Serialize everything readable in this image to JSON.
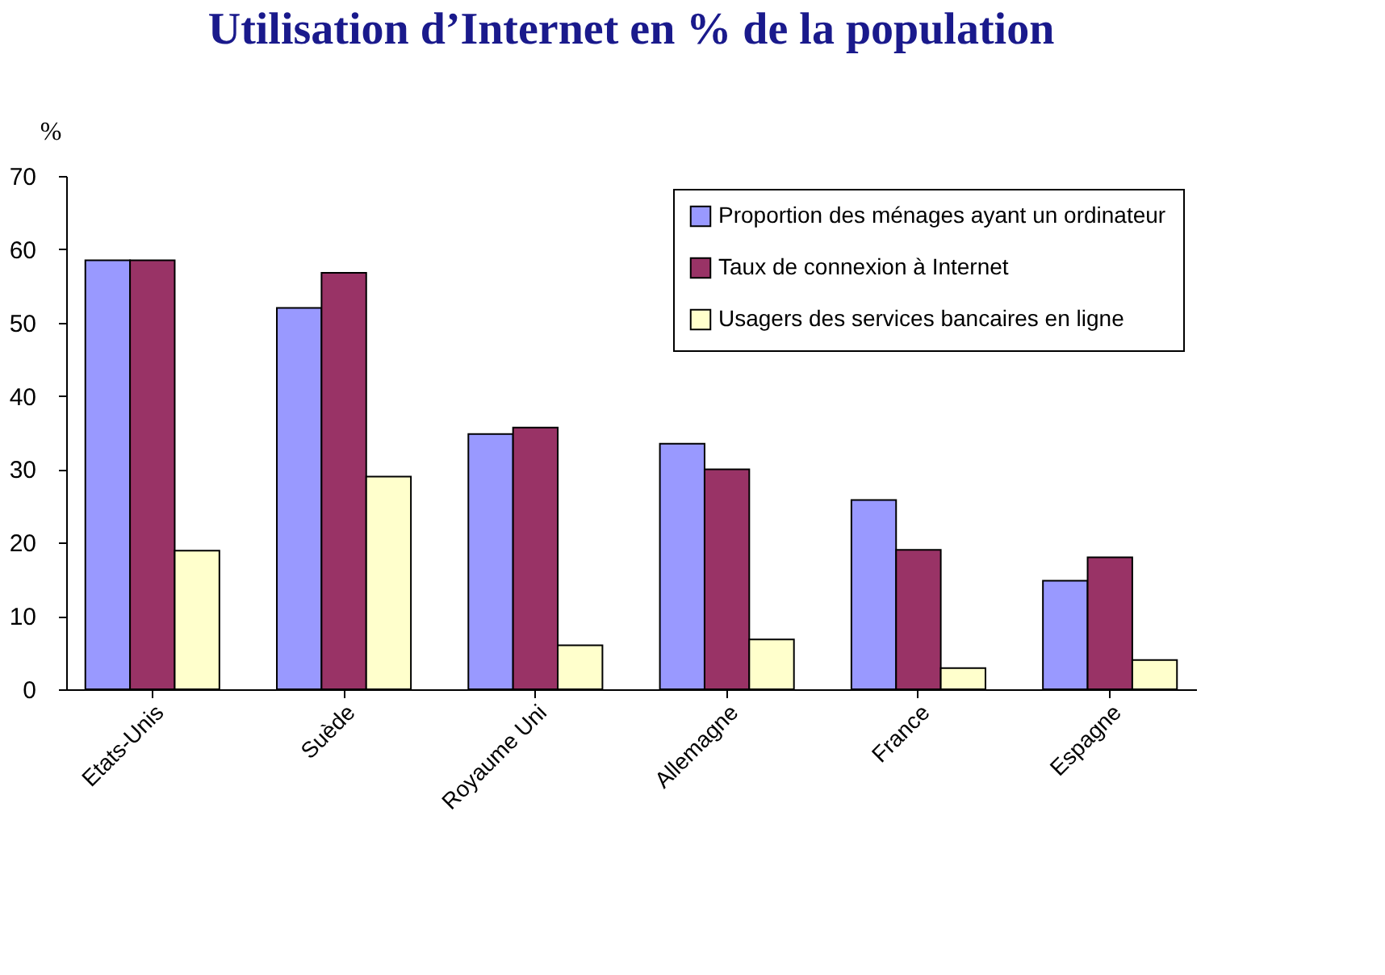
{
  "chart_data": {
    "type": "bar",
    "title": "Utilisation d’Internet en % de la population",
    "ylabel": "%",
    "categories": [
      "Etats-Unis",
      "Suède",
      "Royaume Uni",
      "Allemagne",
      "France",
      "Espagne"
    ],
    "series": [
      {
        "name": "Proportion des ménages ayant un ordinateur",
        "color": "#9999ff",
        "values": [
          58.5,
          52,
          34.8,
          33.5,
          25.8,
          14.8
        ]
      },
      {
        "name": "Taux de connexion à Internet",
        "color": "#993366",
        "values": [
          58.5,
          56.8,
          35.7,
          30,
          19,
          18
        ]
      },
      {
        "name": "Usagers des services bancaires en ligne",
        "color": "#ffffcc",
        "values": [
          18.9,
          29,
          6,
          6.8,
          2.9,
          4
        ]
      }
    ],
    "ylim": [
      0,
      70
    ],
    "yticks": [
      0,
      10,
      20,
      30,
      40,
      50,
      60,
      70
    ],
    "grid": false,
    "legend": "top right"
  }
}
